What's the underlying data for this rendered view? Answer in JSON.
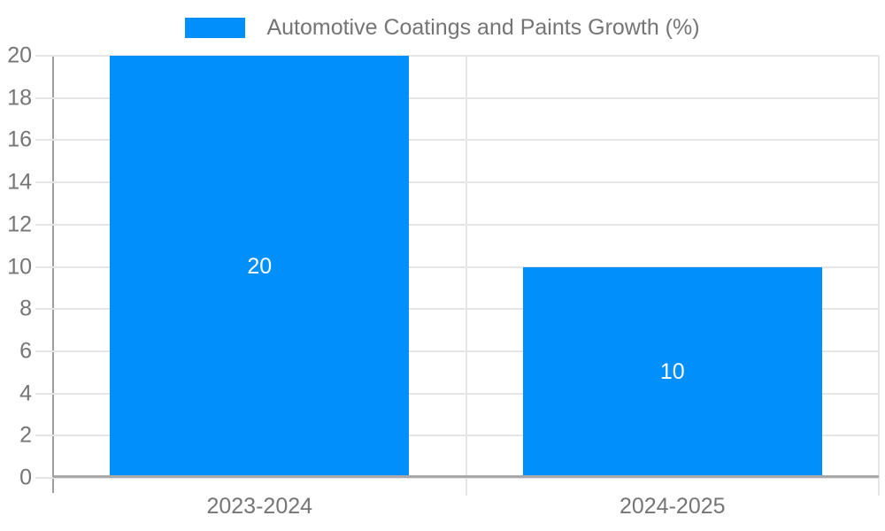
{
  "chart_data": {
    "type": "bar",
    "title": "Automotive Coatings and Paints Growth (%)",
    "categories": [
      "2023-2024",
      "2024-2025"
    ],
    "values": [
      20,
      10
    ],
    "series": [
      {
        "name": "Automotive Coatings and Paints Growth (%)",
        "values": [
          20,
          10
        ]
      }
    ],
    "xlabel": "",
    "ylabel": "",
    "ylim": [
      0,
      20
    ],
    "ytick_step": 2,
    "grid": true,
    "legend_position": "top-center",
    "value_labels": "inside-center"
  },
  "legend": {
    "label": "Automotive Coatings and Paints Growth (%)"
  },
  "colors": {
    "bar": "#008FFB",
    "grid": "#e5e5e5",
    "y_axis_line": "#9e9e9e",
    "x_axis_line": "#a9a9a9",
    "tick_text": "#757575",
    "value_label_text": "#ffffff",
    "background": "#ffffff"
  }
}
